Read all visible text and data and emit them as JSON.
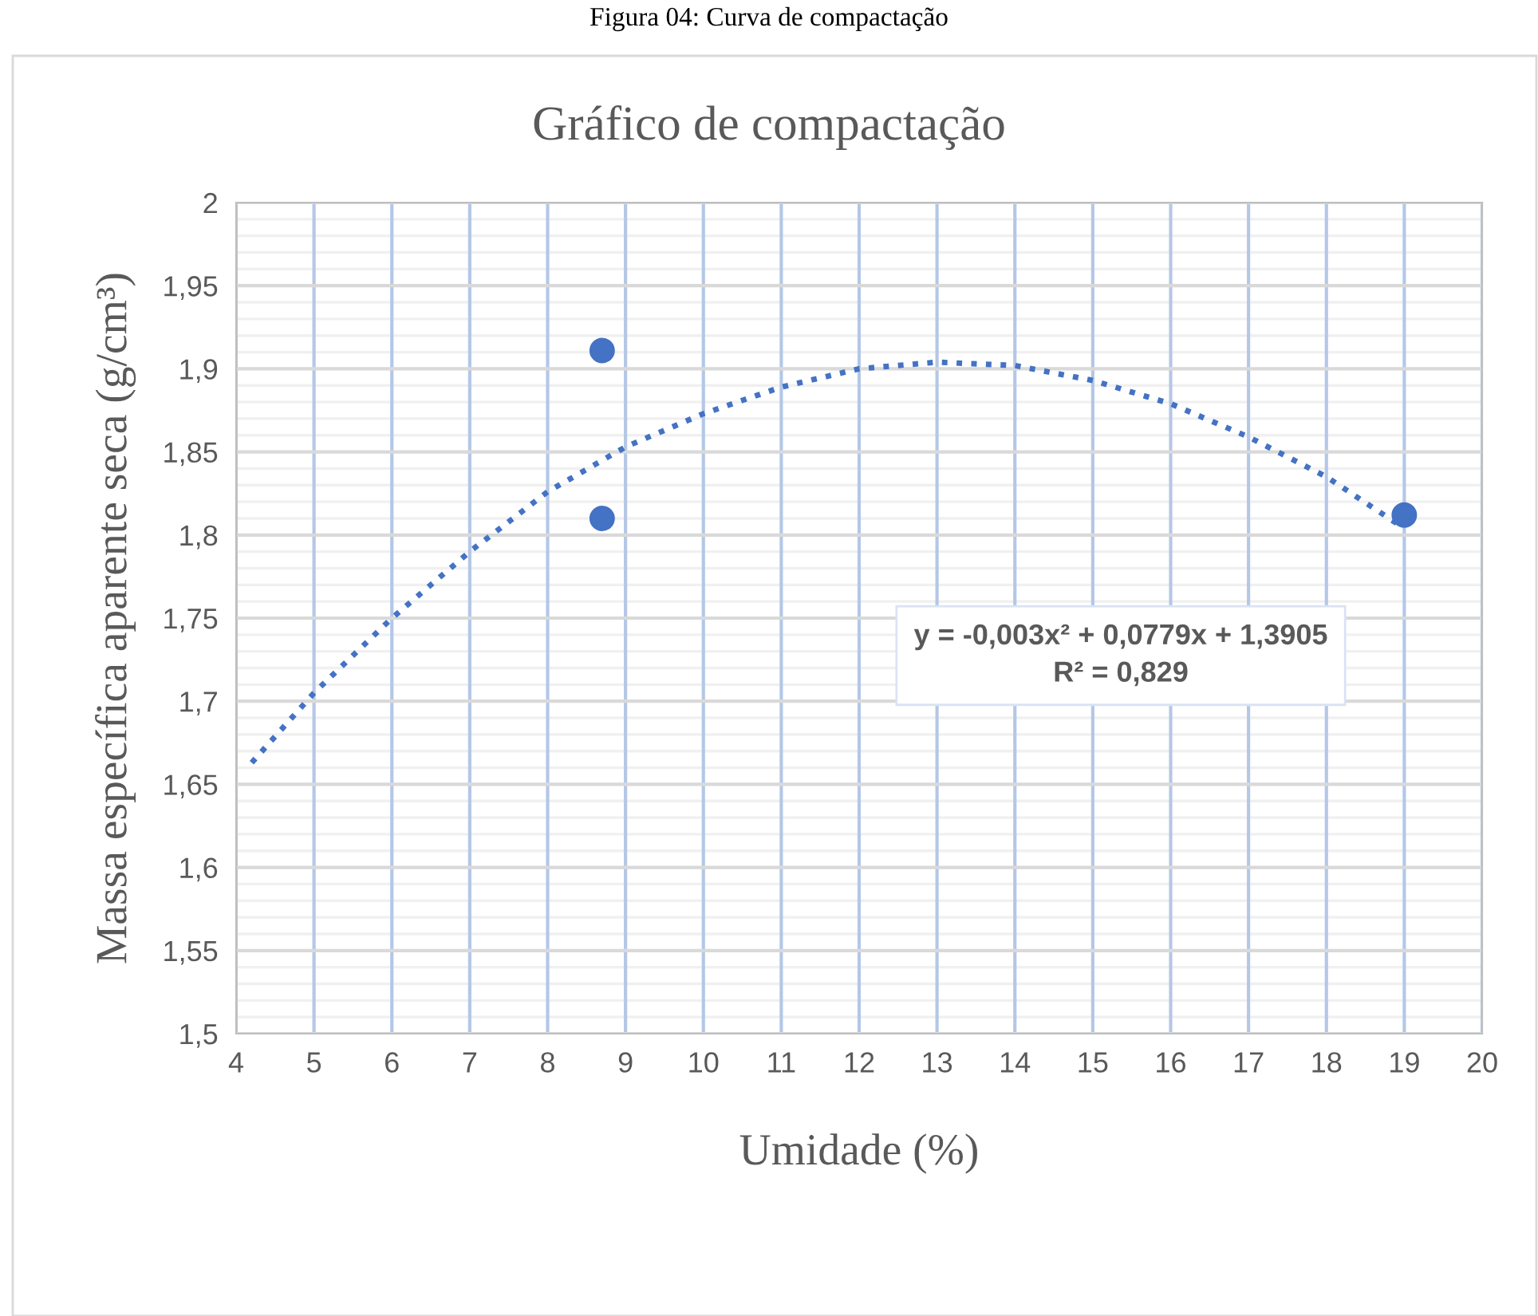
{
  "chart_data": {
    "type": "scatter",
    "title": "Gráfico de compactação",
    "subtitle": "Figura 04: Curva de compactação",
    "xlabel": "Umidade (%)",
    "ylabel": "Massa específica aparente seca (g/cm³)",
    "series": [
      {
        "color": "#4472c4",
        "marker": "circle",
        "x": [
          8.7,
          8.7,
          19.0
        ],
        "values": [
          1.911,
          1.81,
          1.812
        ]
      },
      {
        "type": "line",
        "color": "#4472c4",
        "line_style": "dotted",
        "marker": "none",
        "x": [
          4.2,
          5,
          6,
          7,
          8,
          9,
          10,
          11,
          12,
          13,
          14,
          15,
          16,
          17,
          18,
          19
        ],
        "values": [
          1.663,
          1.705,
          1.75,
          1.79,
          1.826,
          1.853,
          1.873,
          1.889,
          1.9,
          1.904,
          1.902,
          1.893,
          1.879,
          1.859,
          1.835,
          1.804
        ]
      }
    ],
    "annotations": [
      "y = -0,003x² + 0,0779x + 1,3905\nR² = 0,829"
    ],
    "xlim": [
      4,
      20
    ],
    "xticks": [
      4,
      5,
      6,
      7,
      8,
      9,
      10,
      11,
      12,
      13,
      14,
      15,
      16,
      17,
      18,
      19,
      20
    ],
    "ylim": [
      1.5,
      2
    ],
    "yticks": [
      {
        "value": 1.5,
        "label": "1,5"
      },
      {
        "value": 1.55,
        "label": "1,55"
      },
      {
        "value": 1.6,
        "label": "1,6"
      },
      {
        "value": 1.65,
        "label": "1,65"
      },
      {
        "value": 1.7,
        "label": "1,7"
      },
      {
        "value": 1.75,
        "label": "1,75"
      },
      {
        "value": 1.8,
        "label": "1,8"
      },
      {
        "value": 1.85,
        "label": "1,85"
      },
      {
        "value": 1.9,
        "label": "1,9"
      },
      {
        "value": 1.95,
        "label": "1,95"
      },
      {
        "value": 2,
        "label": "2"
      }
    ],
    "grid": true
  }
}
